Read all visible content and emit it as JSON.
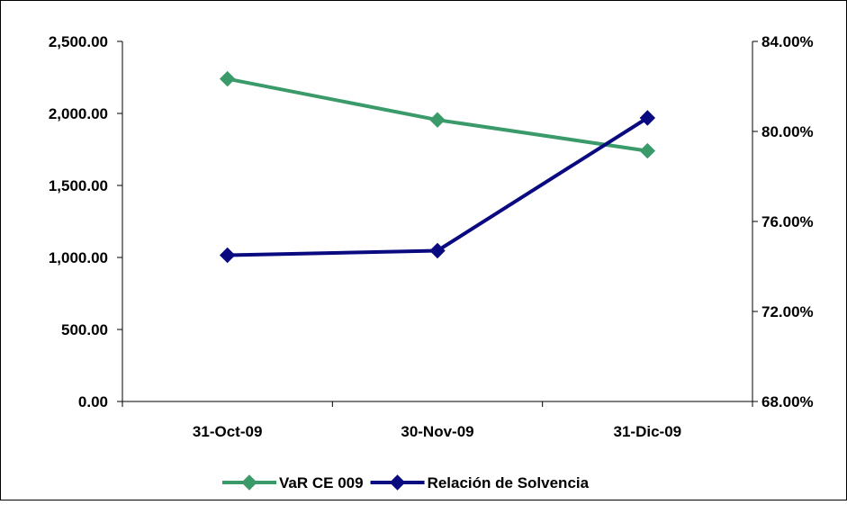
{
  "chart_data": {
    "type": "line",
    "title": "",
    "categories": [
      "31-Oct-09",
      "30-Nov-09",
      "31-Dic-09"
    ],
    "y_left": {
      "ylim": [
        0,
        2500
      ],
      "ticks": [
        "0.00",
        "500.00",
        "1,000.00",
        "1,500.00",
        "2,000.00",
        "2,500.00"
      ]
    },
    "y_right": {
      "ylim": [
        68,
        84
      ],
      "ticks": [
        "68.00%",
        "72.00%",
        "76.00%",
        "80.00%",
        "84.00%"
      ]
    },
    "series": [
      {
        "name": "VaR CE 009",
        "axis": "left",
        "color": "#3a9a6a",
        "values": [
          2240,
          1955,
          1740
        ]
      },
      {
        "name": "Relación de Solvencia",
        "axis": "right",
        "color": "#0a0a80",
        "values": [
          74.5,
          74.7,
          80.6
        ]
      }
    ],
    "grid": false,
    "legend": "bottom"
  }
}
